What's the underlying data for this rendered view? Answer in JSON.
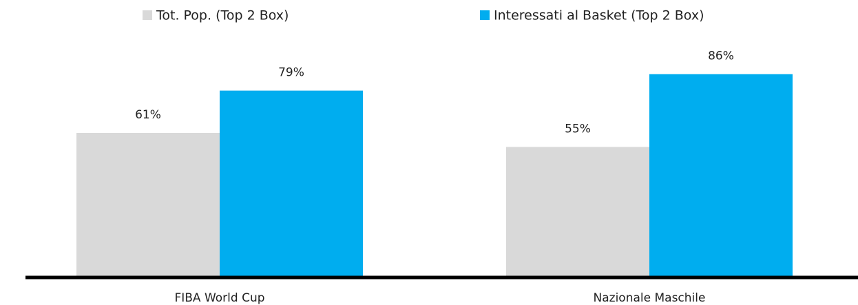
{
  "chart_data": {
    "type": "bar",
    "categories": [
      "FIBA World Cup",
      "Nazionale Maschile"
    ],
    "series": [
      {
        "name": "Tot. Pop. (Top 2 Box)",
        "color": "#d9d9d9",
        "values": [
          61,
          55
        ],
        "value_labels": [
          "61%",
          "55%"
        ]
      },
      {
        "name": "Interessati al Basket (Top 2 Box)",
        "color": "#00adef",
        "values": [
          79,
          86
        ],
        "value_labels": [
          "79%",
          "86%"
        ]
      }
    ]
  }
}
